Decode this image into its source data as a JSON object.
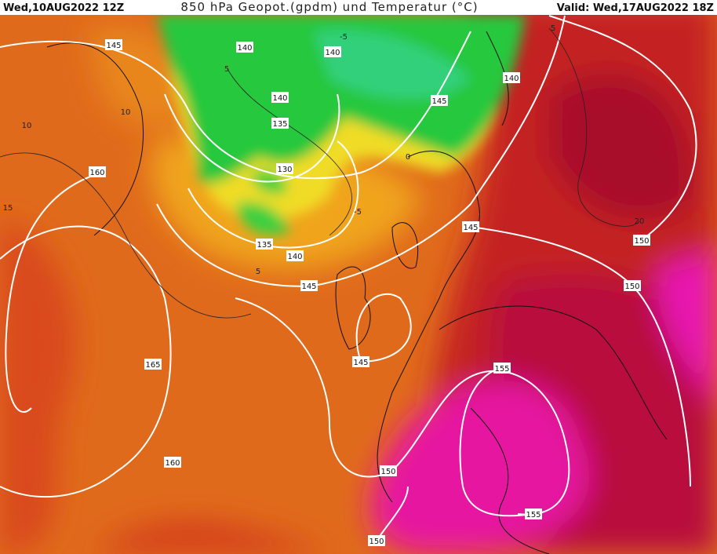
{
  "header": {
    "left": "Wed,10AUG2022 12Z",
    "title": "850 hPa Geopot.(gpdm) und Temperatur (°C)",
    "right": "Valid: Wed,17AUG2022 18Z"
  },
  "height_labels": [
    "145",
    "140",
    "140",
    "140",
    "140",
    "145",
    "135",
    "130",
    "160",
    "135",
    "140",
    "145",
    "150",
    "150",
    "145",
    "165",
    "145",
    "155",
    "160",
    "150",
    "155",
    "150"
  ],
  "temperature_labels": [
    "10",
    "5",
    "-5",
    "5",
    "0",
    "-5",
    "5",
    "15",
    "20",
    "10"
  ]
}
